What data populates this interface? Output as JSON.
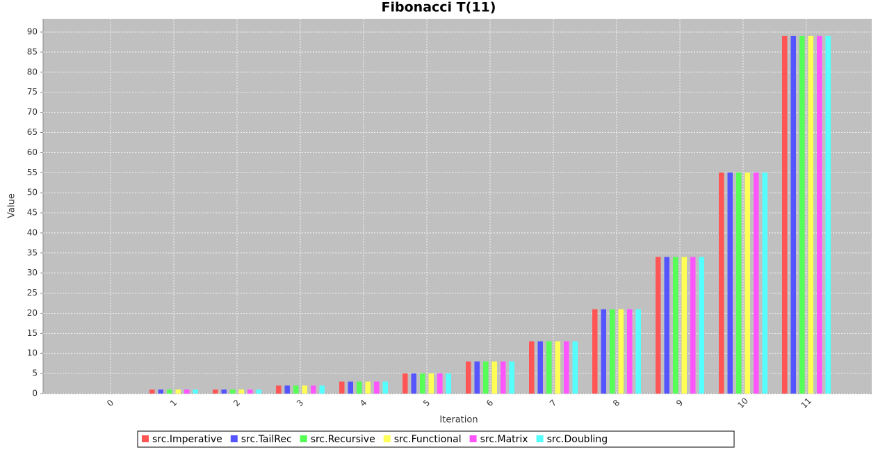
{
  "chart_data": {
    "type": "bar",
    "title": "Fibonacci T(11)",
    "x_label": "Iteration",
    "y_label": "Value",
    "categories": [
      "0",
      "1",
      "2",
      "3",
      "4",
      "5",
      "6",
      "7",
      "8",
      "9",
      "10",
      "11"
    ],
    "series": [
      {
        "name": "src.Imperative",
        "color": "#ff5555",
        "values": [
          0,
          1,
          1,
          2,
          3,
          5,
          8,
          13,
          21,
          34,
          55,
          89
        ]
      },
      {
        "name": "src.TailRec",
        "color": "#5555ff",
        "values": [
          0,
          1,
          1,
          2,
          3,
          5,
          8,
          13,
          21,
          34,
          55,
          89
        ]
      },
      {
        "name": "src.Recursive",
        "color": "#55ff55",
        "values": [
          0,
          1,
          1,
          2,
          3,
          5,
          8,
          13,
          21,
          34,
          55,
          89
        ]
      },
      {
        "name": "src.Functional",
        "color": "#ffff55",
        "values": [
          0,
          1,
          1,
          2,
          3,
          5,
          8,
          13,
          21,
          34,
          55,
          89
        ]
      },
      {
        "name": "src.Matrix",
        "color": "#ff55ff",
        "values": [
          0,
          1,
          1,
          2,
          3,
          5,
          8,
          13,
          21,
          34,
          55,
          89
        ]
      },
      {
        "name": "src.Doubling",
        "color": "#55ffff",
        "values": [
          0,
          1,
          1,
          2,
          3,
          5,
          8,
          13,
          21,
          34,
          55,
          89
        ]
      }
    ],
    "ylim": [
      0,
      93.3
    ],
    "yticks": [
      0,
      5,
      10,
      15,
      20,
      25,
      30,
      35,
      40,
      45,
      50,
      55,
      60,
      65,
      70,
      75,
      80,
      85,
      90
    ],
    "grid": true,
    "legend": "bottom"
  }
}
